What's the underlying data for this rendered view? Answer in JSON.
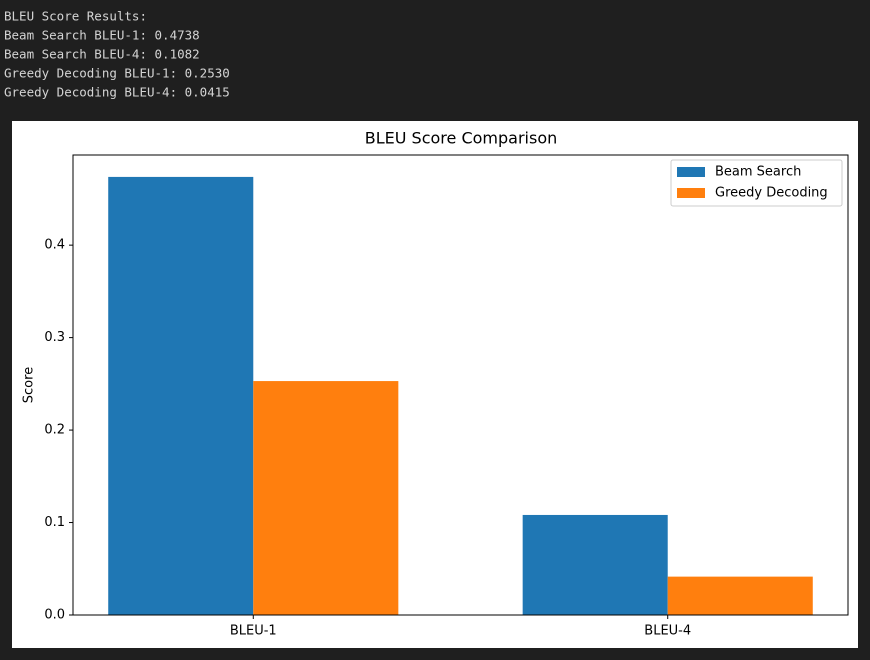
{
  "output_lines": [
    "BLEU Score Results:",
    "Beam Search BLEU-1: 0.4738",
    "Beam Search BLEU-4: 0.1082",
    "Greedy Decoding BLEU-1: 0.2530",
    "Greedy Decoding BLEU-4: 0.0415"
  ],
  "chart_data": {
    "type": "bar",
    "title": "BLEU Score Comparison",
    "y_label": "Score",
    "categories": [
      "BLEU-1",
      "BLEU-4"
    ],
    "series": [
      {
        "name": "Beam Search",
        "color": "#1f77b4",
        "values": [
          0.4738,
          0.1082
        ]
      },
      {
        "name": "Greedy Decoding",
        "color": "#ff7f0e",
        "values": [
          0.253,
          0.0415
        ]
      }
    ],
    "ylim": [
      0,
      0.4975
    ],
    "yticks": [
      {
        "value": 0,
        "label": "0.0"
      },
      0.1,
      0.2,
      0.3,
      0.4
    ],
    "legend": "upper right",
    "grid": false
  }
}
